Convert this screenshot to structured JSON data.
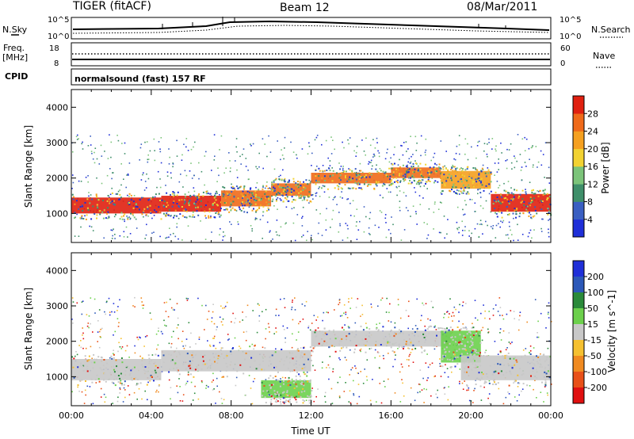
{
  "header": {
    "radar": "TIGER (fitACF)",
    "beam": "Beam 12",
    "date": "08/Mar/2011"
  },
  "summary_panels": {
    "nsky_label": "N.Sky",
    "nsearch_label": "N.Search",
    "freq_label_line1": "Freq.",
    "freq_label_line2": "[MHz]",
    "nave_label": "Nave",
    "cpid_label": "CPID",
    "cpid_value": "normalsound (fast) 157 RF",
    "nsky_ticks": [
      "10^5",
      "10^0"
    ],
    "nsearch_ticks": [
      "10^5",
      "10^0"
    ],
    "freq_ticks": [
      "18",
      "8"
    ],
    "nave_ticks": [
      "60",
      "0"
    ]
  },
  "chart_data": [
    {
      "type": "heatmap",
      "name": "power",
      "ylabel": "Slant Range [km]",
      "xlabel": "",
      "yticks": [
        "1000",
        "2000",
        "3000",
        "4000"
      ],
      "ylim": [
        180,
        4500
      ],
      "xlim_hours": [
        0,
        24
      ],
      "colorbar_label": "Power [dB]",
      "colorbar_ticks": [
        "4",
        "8",
        "12",
        "16",
        "20",
        "24",
        "28"
      ],
      "colorbar_colors": [
        "#1f2fd8",
        "#3a5fc2",
        "#3f8f6a",
        "#7cc47a",
        "#f2d232",
        "#f5a020",
        "#ef6a1a",
        "#e02010"
      ],
      "bands": [
        {
          "x": [
            0,
            4.5
          ],
          "y": [
            1000,
            1450
          ],
          "level": 28
        },
        {
          "x": [
            4.5,
            7.5
          ],
          "y": [
            1050,
            1500
          ],
          "level": 26
        },
        {
          "x": [
            7.5,
            10
          ],
          "y": [
            1200,
            1650
          ],
          "level": 24
        },
        {
          "x": [
            10,
            12
          ],
          "y": [
            1500,
            1850
          ],
          "level": 24
        },
        {
          "x": [
            12,
            16
          ],
          "y": [
            1850,
            2150
          ],
          "level": 22
        },
        {
          "x": [
            16,
            18.5
          ],
          "y": [
            2000,
            2300
          ],
          "level": 22
        },
        {
          "x": [
            18.5,
            21
          ],
          "y": [
            1700,
            2200
          ],
          "level": 18
        },
        {
          "x": [
            21,
            24
          ],
          "y": [
            1050,
            1550
          ],
          "level": 26
        }
      ]
    },
    {
      "type": "heatmap",
      "name": "velocity",
      "ylabel": "Slant Range [km]",
      "xlabel": "Time UT",
      "yticks": [
        "1000",
        "2000",
        "3000",
        "4000"
      ],
      "ylim": [
        180,
        4500
      ],
      "xlim_hours": [
        0,
        24
      ],
      "xticks": [
        "00:00",
        "04:00",
        "08:00",
        "12:00",
        "16:00",
        "20:00",
        "00:00"
      ],
      "colorbar_label": "Velocity [m s^-1]",
      "colorbar_ticks": [
        "200",
        "100",
        "50",
        "15",
        "-15",
        "-50",
        "-100",
        "-200"
      ],
      "colorbar_colors": [
        "#1f2fd8",
        "#2c58b8",
        "#2a8a3a",
        "#6cd04c",
        "#c8c8c8",
        "#f5c030",
        "#f08a20",
        "#e85018",
        "#e01010"
      ],
      "bands": [
        {
          "x": [
            0,
            4.5
          ],
          "y": [
            900,
            1500
          ],
          "value": 0
        },
        {
          "x": [
            4.5,
            12
          ],
          "y": [
            1150,
            1750
          ],
          "value": 0
        },
        {
          "x": [
            9.5,
            12
          ],
          "y": [
            400,
            900
          ],
          "value": 40
        },
        {
          "x": [
            12,
            19
          ],
          "y": [
            1850,
            2300
          ],
          "value": 0
        },
        {
          "x": [
            18.5,
            20.5
          ],
          "y": [
            1400,
            2300
          ],
          "value": 40
        },
        {
          "x": [
            19.5,
            24
          ],
          "y": [
            900,
            1600
          ],
          "value": 0
        }
      ]
    }
  ]
}
